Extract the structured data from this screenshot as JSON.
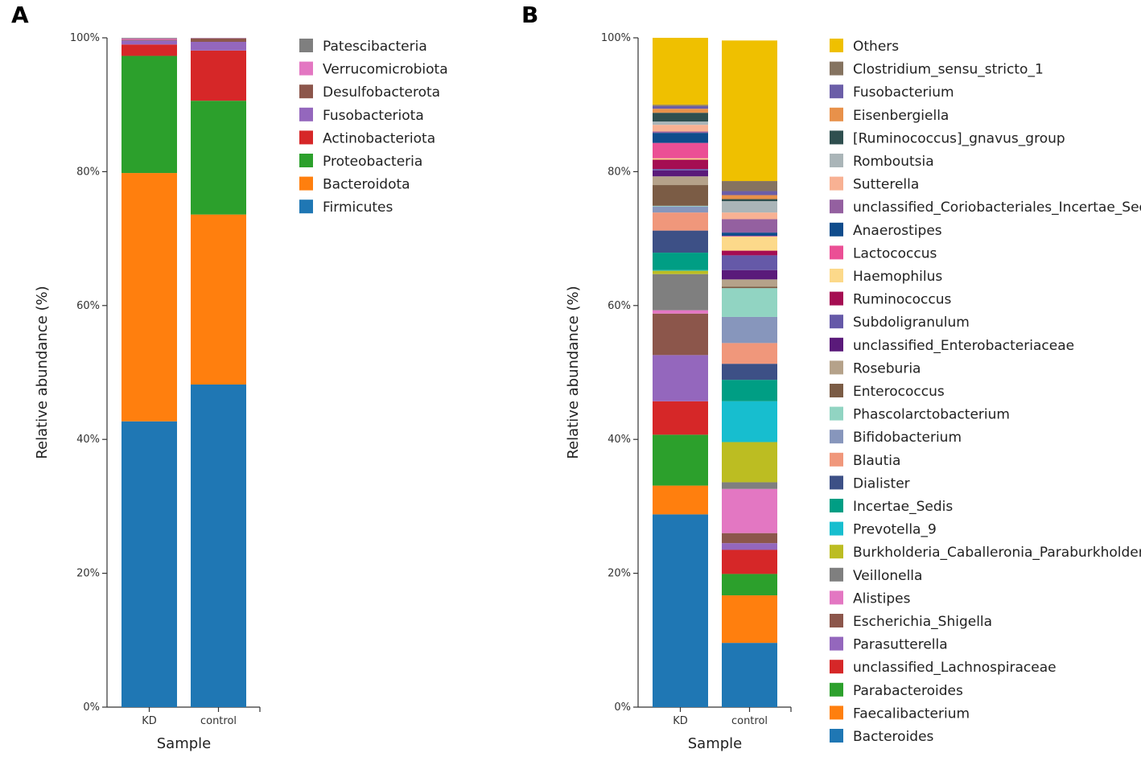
{
  "chart_data": [
    {
      "panel": "A",
      "type": "bar",
      "stacked": true,
      "categories": [
        "KD",
        "control"
      ],
      "xlabel": "Sample",
      "ylabel": "Relative abundance (%)",
      "yticks": [
        "0%",
        "20%",
        "40%",
        "60%",
        "80%",
        "100%"
      ],
      "ylim": [
        0,
        100
      ],
      "series": [
        {
          "name": "Firmicutes",
          "color": "#1f77b4",
          "values": [
            42.7,
            48.2
          ]
        },
        {
          "name": "Bacteroidota",
          "color": "#ff7f0e",
          "values": [
            37.1,
            25.4
          ]
        },
        {
          "name": "Proteobacteria",
          "color": "#2ca02c",
          "values": [
            17.5,
            17.0
          ]
        },
        {
          "name": "Actinobacteriota",
          "color": "#d62728",
          "values": [
            1.7,
            7.5
          ]
        },
        {
          "name": "Fusobacteriota",
          "color": "#9467bd",
          "values": [
            0.6,
            1.3
          ]
        },
        {
          "name": "Desulfobacterota",
          "color": "#8c564b",
          "values": [
            0.1,
            0.5
          ]
        },
        {
          "name": "Verrucomicrobiota",
          "color": "#e377c2",
          "values": [
            0.2,
            0.05
          ]
        },
        {
          "name": "Patescibacteria",
          "color": "#7f7f7f",
          "values": [
            0.1,
            0.05
          ]
        }
      ]
    },
    {
      "panel": "B",
      "type": "bar",
      "stacked": true,
      "categories": [
        "KD",
        "control"
      ],
      "xlabel": "Sample",
      "ylabel": "Relative abundance (%)",
      "yticks": [
        "0%",
        "20%",
        "40%",
        "60%",
        "80%",
        "100%"
      ],
      "ylim": [
        0,
        100
      ],
      "series": [
        {
          "name": "Bacteroides",
          "color": "#1f77b4",
          "values": [
            28.8,
            9.6
          ]
        },
        {
          "name": "Faecalibacterium",
          "color": "#ff7f0e",
          "values": [
            4.3,
            7.1
          ]
        },
        {
          "name": "Parabacteroides",
          "color": "#2ca02c",
          "values": [
            7.6,
            3.2
          ]
        },
        {
          "name": "unclassified_Lachnospiraceae",
          "color": "#d62728",
          "values": [
            5.0,
            3.6
          ]
        },
        {
          "name": "Parasutterella",
          "color": "#9467bd",
          "values": [
            6.9,
            1.0
          ]
        },
        {
          "name": "Escherichia_Shigella",
          "color": "#8c564b",
          "values": [
            6.2,
            1.5
          ]
        },
        {
          "name": "Alistipes",
          "color": "#e377c2",
          "values": [
            0.5,
            6.6
          ]
        },
        {
          "name": "Veillonella",
          "color": "#7f7f7f",
          "values": [
            5.4,
            1.0
          ]
        },
        {
          "name": "Burkholderia_Caballeronia_Paraburkholderia",
          "color": "#bcbd22",
          "values": [
            0.5,
            6.0
          ]
        },
        {
          "name": "Prevotella_9",
          "color": "#17becf",
          "values": [
            0.1,
            6.1
          ]
        },
        {
          "name": "Incertae_Sedis",
          "color": "#009e84",
          "values": [
            2.6,
            3.2
          ]
        },
        {
          "name": "Dialister",
          "color": "#3d5086",
          "values": [
            3.3,
            2.4
          ]
        },
        {
          "name": "Blautia",
          "color": "#f0977b",
          "values": [
            2.7,
            3.1
          ]
        },
        {
          "name": "Bifidobacterium",
          "color": "#8796bc",
          "values": [
            0.9,
            3.9
          ]
        },
        {
          "name": "Phascolarctobacterium",
          "color": "#91d4c2",
          "values": [
            0.1,
            4.3
          ]
        },
        {
          "name": "Enterococcus",
          "color": "#7b5c45",
          "values": [
            3.1,
            0.2
          ]
        },
        {
          "name": "Roseburia",
          "color": "#b5a28a",
          "values": [
            1.3,
            1.1
          ]
        },
        {
          "name": "unclassified_Enterobacteriaceae",
          "color": "#5a1a7a",
          "values": [
            0.9,
            1.4
          ]
        },
        {
          "name": "Subdoligranulum",
          "color": "#6559a8",
          "values": [
            0.2,
            2.2
          ]
        },
        {
          "name": "Ruminococcus",
          "color": "#a50d52",
          "values": [
            1.4,
            0.7
          ]
        },
        {
          "name": "Haemophilus",
          "color": "#fcd98a",
          "values": [
            0.2,
            2.1
          ]
        },
        {
          "name": "Lactococcus",
          "color": "#eb4f95",
          "values": [
            2.3,
            0.1
          ]
        },
        {
          "name": "Anaerostipes",
          "color": "#0f4c8c",
          "values": [
            1.5,
            0.5
          ]
        },
        {
          "name": "unclassified_Coriobacteriales_Incertae_Sedis",
          "color": "#9460a0",
          "values": [
            0.2,
            2.0
          ]
        },
        {
          "name": "Sutterella",
          "color": "#f8b193",
          "values": [
            1.0,
            1.0
          ]
        },
        {
          "name": "Romboutsia",
          "color": "#aab5b8",
          "values": [
            0.5,
            1.7
          ]
        },
        {
          "name": "[Ruminococcus]_gnavus_group",
          "color": "#2f4f4f",
          "values": [
            1.3,
            0.3
          ]
        },
        {
          "name": "Eisenbergiella",
          "color": "#e8914a",
          "values": [
            0.6,
            0.6
          ]
        },
        {
          "name": "Fusobacterium",
          "color": "#6b5ea8",
          "values": [
            0.4,
            0.6
          ]
        },
        {
          "name": "Clostridium_sensu_stricto_1",
          "color": "#857360",
          "values": [
            0.2,
            1.5
          ]
        },
        {
          "name": "Others",
          "color": "#efc000",
          "values": [
            10.6,
            21.0
          ]
        }
      ]
    }
  ]
}
